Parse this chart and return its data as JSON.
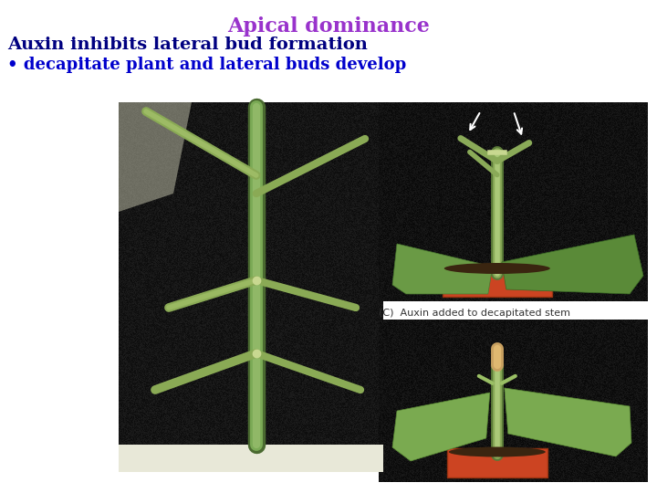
{
  "title": "Apical dominance",
  "title_color": "#9933CC",
  "title_fontsize": 16,
  "line1": "Auxin inhibits lateral bud formation",
  "line1_color": "#000080",
  "line1_fontsize": 14,
  "line2": "• decapitate plant and lateral buds develop",
  "line2_color": "#0000CC",
  "line2_fontsize": 13,
  "caption": "(C)  Auxin added to decapitated stem",
  "caption_color": "#333333",
  "caption_fontsize": 8,
  "bg_color": "#FFFFFF",
  "black": "#050505",
  "stem_color": "#8aaa60",
  "leaf_color": "#7aaa50",
  "pot_color": "#cc4422",
  "soil_color": "#3a2510"
}
